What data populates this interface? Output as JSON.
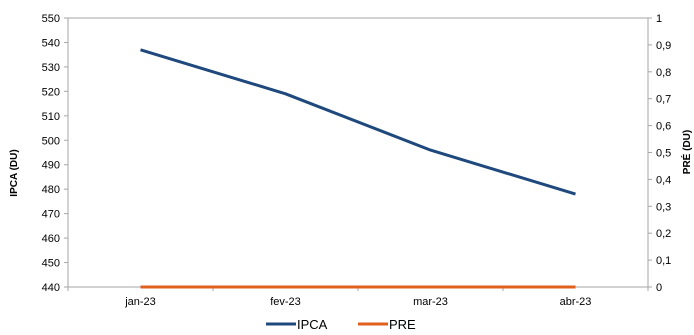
{
  "chart_data": {
    "type": "line",
    "categories": [
      "jan-23",
      "fev-23",
      "mar-23",
      "abr-23"
    ],
    "series": [
      {
        "name": "IPCA",
        "axis": "left",
        "color": "#1f497d",
        "values": [
          537,
          519,
          496,
          478
        ]
      },
      {
        "name": "PRE",
        "axis": "right",
        "color": "#e2601d",
        "values": [
          0,
          0,
          0,
          0
        ]
      }
    ],
    "ylabel": "IPCA (DU)",
    "y2label": "PRÉ (DU)",
    "ylim": [
      440,
      550
    ],
    "y2lim": [
      0,
      1
    ],
    "yticks": [
      "440",
      "450",
      "460",
      "470",
      "480",
      "490",
      "500",
      "510",
      "520",
      "530",
      "540",
      "550"
    ],
    "y2ticks": [
      "0",
      "0,1",
      "0,2",
      "0,3",
      "0,4",
      "0,5",
      "0,6",
      "0,7",
      "0,8",
      "0,9",
      "1"
    ],
    "grid": false,
    "legend": "bottom-center"
  }
}
